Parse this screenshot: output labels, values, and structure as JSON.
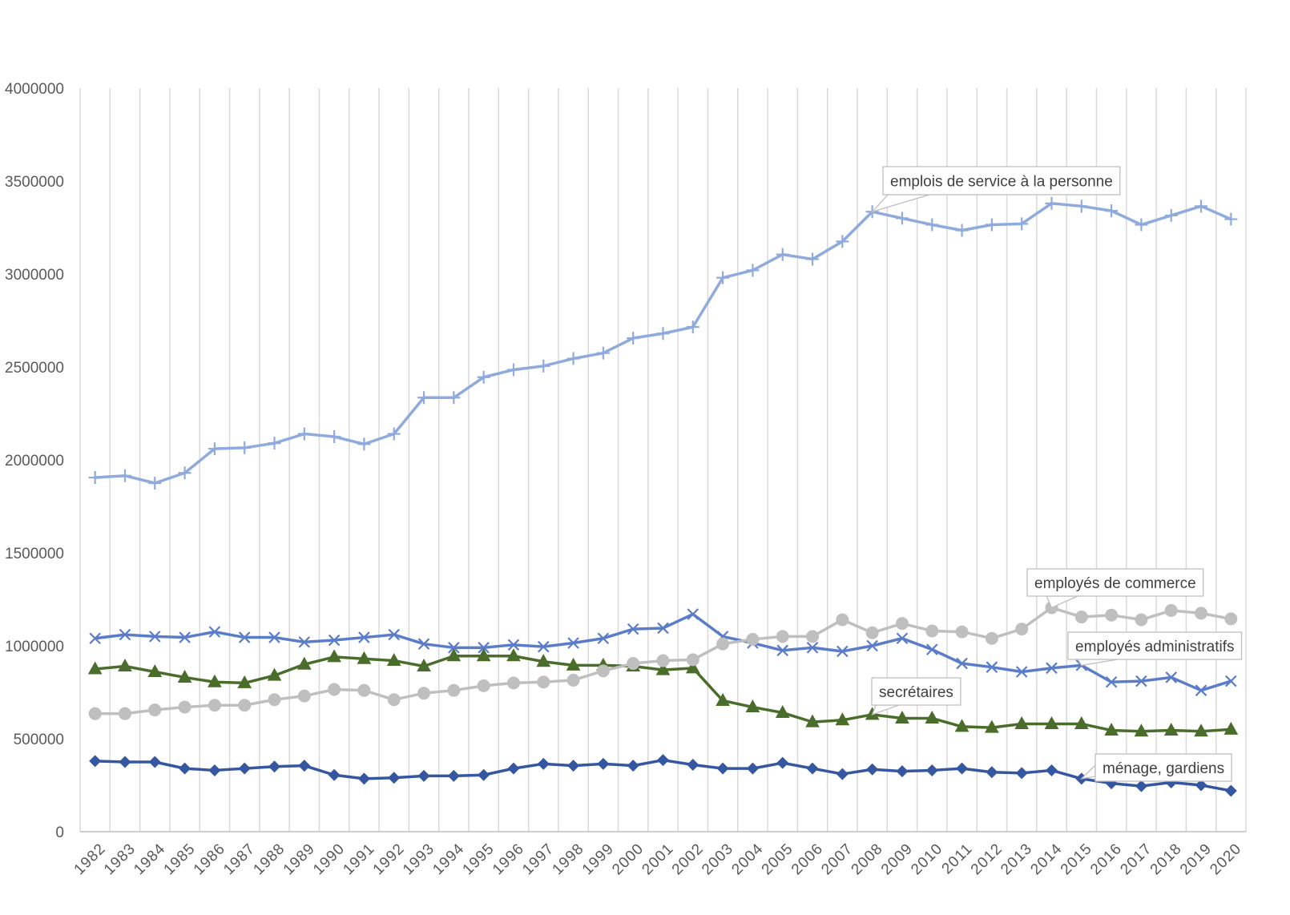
{
  "chart_data": {
    "type": "line",
    "title": "",
    "xlabel": "",
    "ylabel": "",
    "categories": [
      "1982",
      "1983",
      "1984",
      "1985",
      "1986",
      "1987",
      "1988",
      "1989",
      "1990",
      "1991",
      "1992",
      "1993",
      "1994",
      "1995",
      "1996",
      "1997",
      "1998",
      "1999",
      "2000",
      "2001",
      "2002",
      "2003",
      "2004",
      "2005",
      "2006",
      "2007",
      "2008",
      "2009",
      "2010",
      "2011",
      "2012",
      "2013",
      "2014",
      "2015",
      "2016",
      "2017",
      "2018",
      "2019",
      "2020"
    ],
    "ylim": [
      0,
      4000000
    ],
    "yticks": [
      0,
      500000,
      1000000,
      1500000,
      2000000,
      2500000,
      3000000,
      3500000,
      4000000
    ],
    "grid": {
      "vertical": true,
      "horizontal": false
    },
    "legend": "none",
    "series": [
      {
        "name": "emplois de service à la personne",
        "color": "#8FAADC",
        "marker": "plus",
        "values": [
          1905000,
          1915000,
          1875000,
          1930000,
          2060000,
          2065000,
          2090000,
          2140000,
          2125000,
          2085000,
          2140000,
          2335000,
          2335000,
          2445000,
          2485000,
          2505000,
          2545000,
          2575000,
          2655000,
          2680000,
          2715000,
          2980000,
          3020000,
          3105000,
          3080000,
          3175000,
          3335000,
          3300000,
          3265000,
          3235000,
          3265000,
          3270000,
          3380000,
          3365000,
          3340000,
          3265000,
          3315000,
          3365000,
          3295000
        ]
      },
      {
        "name": "employés administratifs",
        "color": "#5B7DC9",
        "marker": "cross",
        "values": [
          1040000,
          1060000,
          1050000,
          1045000,
          1075000,
          1045000,
          1045000,
          1020000,
          1030000,
          1045000,
          1060000,
          1010000,
          990000,
          990000,
          1005000,
          995000,
          1015000,
          1040000,
          1090000,
          1095000,
          1170000,
          1050000,
          1015000,
          975000,
          990000,
          970000,
          1000000,
          1040000,
          980000,
          905000,
          885000,
          860000,
          880000,
          895000,
          805000,
          810000,
          830000,
          760000,
          810000
        ]
      },
      {
        "name": "secrétaires",
        "color": "#4A6D2B",
        "marker": "triangle",
        "values": [
          875000,
          890000,
          860000,
          830000,
          805000,
          800000,
          840000,
          900000,
          940000,
          930000,
          920000,
          890000,
          945000,
          945000,
          945000,
          915000,
          895000,
          895000,
          890000,
          870000,
          880000,
          705000,
          670000,
          640000,
          590000,
          600000,
          630000,
          610000,
          610000,
          565000,
          560000,
          580000,
          580000,
          580000,
          545000,
          540000,
          545000,
          540000,
          550000
        ]
      },
      {
        "name": "employés de commerce",
        "color": "#BFBFBF",
        "marker": "circle",
        "values": [
          635000,
          635000,
          655000,
          670000,
          680000,
          680000,
          710000,
          730000,
          765000,
          760000,
          710000,
          745000,
          760000,
          785000,
          800000,
          805000,
          815000,
          865000,
          905000,
          920000,
          925000,
          1010000,
          1035000,
          1050000,
          1050000,
          1140000,
          1070000,
          1120000,
          1080000,
          1075000,
          1040000,
          1090000,
          1205000,
          1155000,
          1165000,
          1140000,
          1190000,
          1175000,
          1145000
        ]
      },
      {
        "name": "ménage, gardiens",
        "color": "#3556A0",
        "marker": "diamond",
        "values": [
          380000,
          375000,
          375000,
          340000,
          330000,
          340000,
          350000,
          355000,
          305000,
          285000,
          290000,
          300000,
          300000,
          305000,
          340000,
          365000,
          355000,
          365000,
          355000,
          385000,
          360000,
          340000,
          340000,
          370000,
          340000,
          310000,
          335000,
          325000,
          330000,
          340000,
          320000,
          315000,
          330000,
          285000,
          260000,
          245000,
          265000,
          250000,
          220000
        ]
      }
    ]
  }
}
